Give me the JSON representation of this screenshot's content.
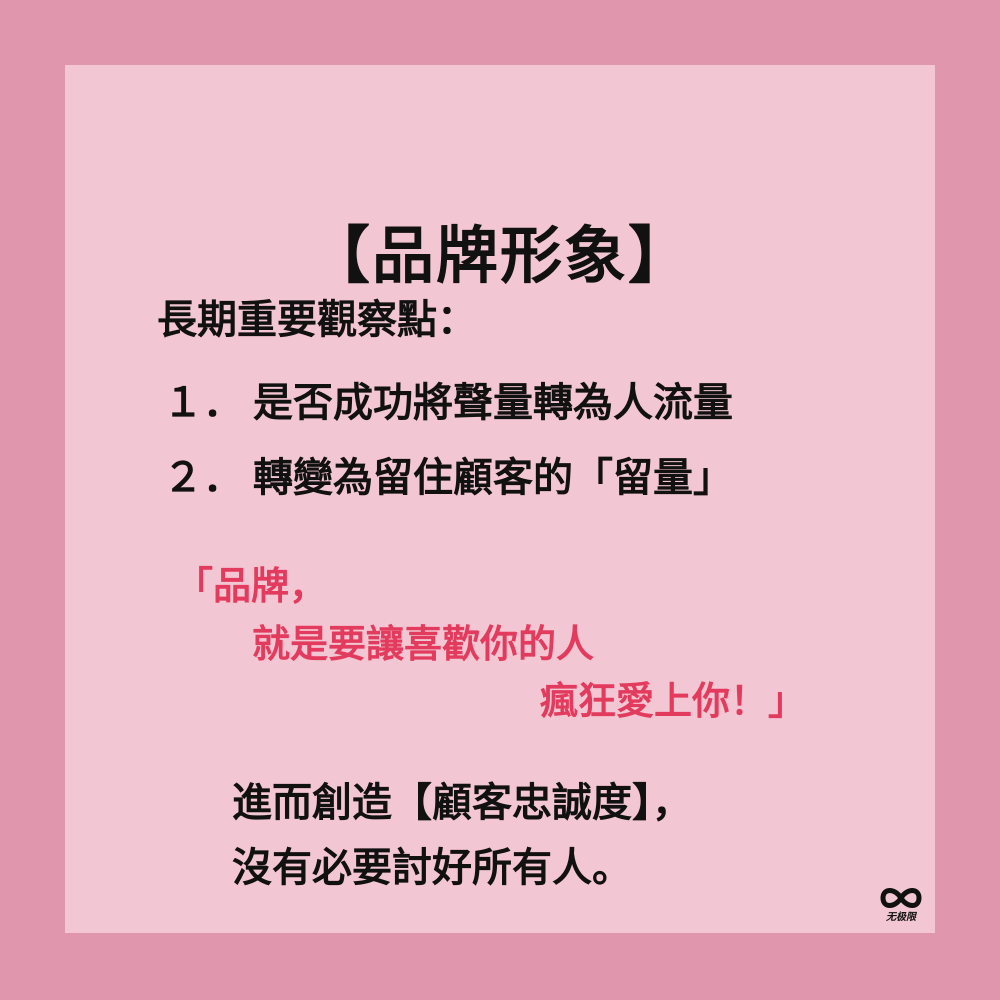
{
  "post": {
    "title": "【品牌形象】",
    "heading": "長期重要觀察點：",
    "points": [
      {
        "number": "１．",
        "text": "是否成功將聲量轉為人流量"
      },
      {
        "number": "２．",
        "text": "轉變為留住顧客的「留量」"
      }
    ],
    "quote_lines": [
      "「品牌，",
      "就是要讓喜歡你的人",
      "瘋狂愛上你！」"
    ],
    "closing_lines": [
      "進而創造【顧客忠誠度】，",
      "沒有必要討好所有人。"
    ]
  },
  "logo": {
    "icon": "infinity-icon",
    "text": "无极限"
  },
  "colors": {
    "border": "#e097ad",
    "card": "#f2c6d2",
    "text": "#111111",
    "accent": "#e23b5e"
  }
}
